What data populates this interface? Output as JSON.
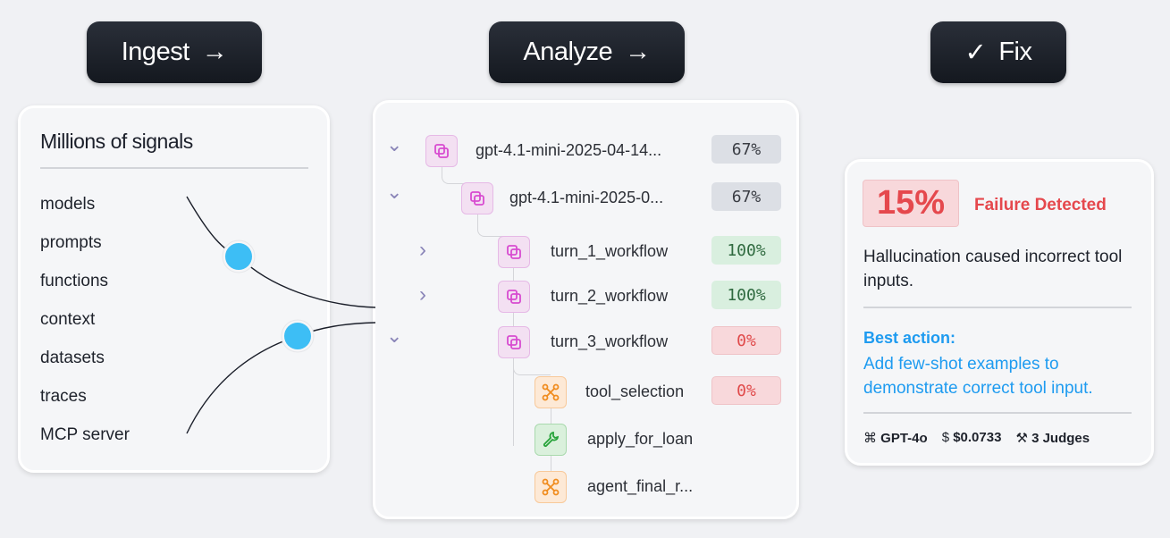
{
  "steps": [
    {
      "label": "Ingest",
      "icon": "arrow-right-icon"
    },
    {
      "label": "Analyze",
      "icon": "arrow-right-icon"
    },
    {
      "label": "Fix",
      "icon": "check-icon"
    }
  ],
  "signals": {
    "title": "Millions of signals",
    "items": [
      "models",
      "prompts",
      "functions",
      "context",
      "datasets",
      "traces",
      "MCP server"
    ],
    "dot_color": "#3dbef5"
  },
  "tree": [
    {
      "label": "gpt-4.1-mini-2025-04-14...",
      "icon": "layers-icon",
      "chevron": "down",
      "score": "67%",
      "status": "neutral"
    },
    {
      "label": "gpt-4.1-mini-2025-0...",
      "icon": "layers-icon",
      "chevron": "down",
      "score": "67%",
      "status": "neutral"
    },
    {
      "label": "turn_1_workflow",
      "icon": "layers-icon",
      "chevron": "right",
      "score": "100%",
      "status": "pass"
    },
    {
      "label": "turn_2_workflow",
      "icon": "layers-icon",
      "chevron": "right",
      "score": "100%",
      "status": "pass"
    },
    {
      "label": "turn_3_workflow",
      "icon": "layers-icon",
      "chevron": "down",
      "score": "0%",
      "status": "fail"
    },
    {
      "label": "tool_selection",
      "icon": "workflow-icon",
      "score": "0%",
      "status": "fail"
    },
    {
      "label": "apply_for_loan",
      "icon": "wrench-icon"
    },
    {
      "label": "agent_final_r...",
      "icon": "workflow-icon"
    }
  ],
  "fix": {
    "score": "15%",
    "status": "Failure Detected",
    "description": "Hallucination caused incorrect tool inputs.",
    "action_title": "Best action:",
    "action_text": "Add few-shot examples to demonstrate correct tool input.",
    "model": "GPT-4o",
    "cost": "$0.0733",
    "judges": "3 Judges",
    "colors": {
      "fail": "#e5484d",
      "action": "#1e9bf0"
    }
  }
}
